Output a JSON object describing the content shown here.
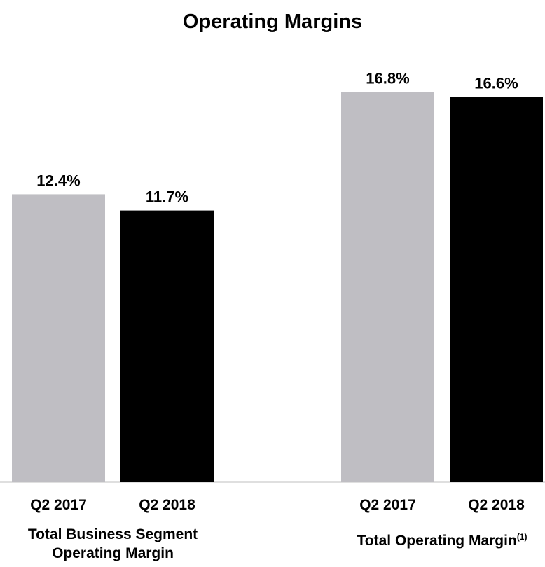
{
  "chart_data": {
    "type": "bar",
    "title": "Operating Margins",
    "categories": [
      {
        "label": "Total Business Segment Operating Margin"
      },
      {
        "label": "Total Operating Margin",
        "note": "(1)"
      }
    ],
    "series": [
      {
        "name": "Q2 2017",
        "color": "#bfbec3",
        "values": [
          12.4,
          16.8
        ],
        "value_labels": [
          "12.4%",
          "16.8%"
        ]
      },
      {
        "name": "Q2 2018",
        "color": "#000000",
        "values": [
          11.7,
          16.6
        ],
        "value_labels": [
          "11.7%",
          "16.6%"
        ]
      }
    ],
    "ylim": [
      0,
      18
    ]
  }
}
